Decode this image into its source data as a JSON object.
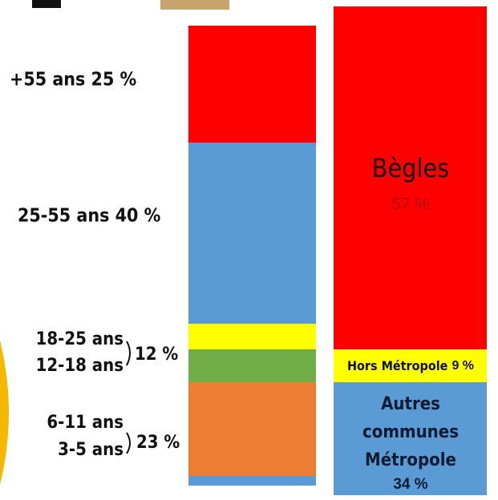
{
  "age_groups": {
    "labels": [
      "+55 ans 25 %",
      "25-55 ans 40 %"
    ],
    "bracket_groups": [
      {
        "items": [
          "18-25 ans",
          "12-18 ans"
        ],
        "share": "12 %"
      },
      {
        "items": [
          "6-11 ans",
          "3-5 ans"
        ],
        "share": "23 %"
      }
    ]
  },
  "origin": {
    "begles": {
      "name": "Bègles",
      "share": "57 %"
    },
    "hors": {
      "name": "Hors Métropole",
      "share": "9 %"
    },
    "autres": {
      "name_lines": [
        "Autres",
        "communes",
        "Métropole"
      ],
      "share": "34 %"
    }
  }
}
